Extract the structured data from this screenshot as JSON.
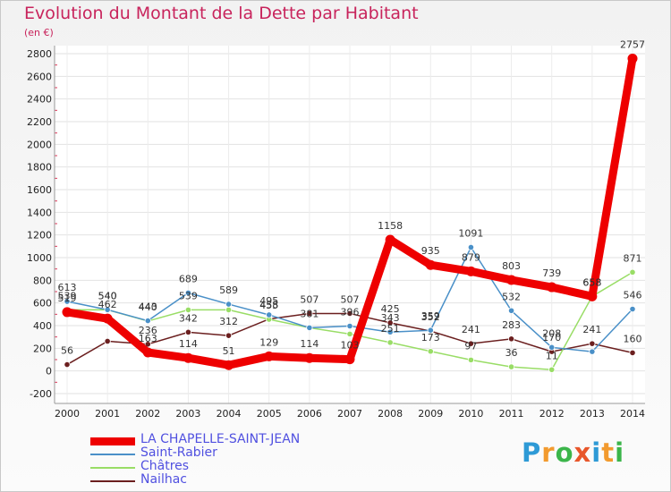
{
  "chart_data": {
    "type": "line",
    "title": "Evolution du Montant de la Dette par Habitant",
    "ylabel": "(en €)",
    "ylim": [
      -200,
      2800
    ],
    "yticks": [
      -200,
      0,
      200,
      400,
      600,
      800,
      1000,
      1200,
      1400,
      1600,
      1800,
      2000,
      2200,
      2400,
      2600,
      2800
    ],
    "x": [
      "2000",
      "2001",
      "2002",
      "2003",
      "2004",
      "2005",
      "2006",
      "2007",
      "2008",
      "2009",
      "2010",
      "2011",
      "2012",
      "2013",
      "2014"
    ],
    "grid": true,
    "legend_position": "bottom-left",
    "series": [
      {
        "name": "LA CHAPELLE-SAINT-JEAN",
        "color": "#ee0000",
        "values": [
          519,
          462,
          163,
          114,
          51,
          129,
          114,
          103,
          1158,
          935,
          879,
          803,
          739,
          658,
          2757
        ]
      },
      {
        "name": "Saint-Rabier",
        "color": "#4a90c8",
        "values": [
          613,
          540,
          443,
          689,
          589,
          495,
          381,
          396,
          343,
          359,
          1091,
          532,
          208,
          170,
          546
        ]
      },
      {
        "name": "Châtres",
        "color": "#99dd66",
        "values": [
          539,
          540,
          440,
          539,
          539,
          455,
          381,
          326,
          251,
          173,
          97,
          36,
          11,
          658,
          871
        ]
      },
      {
        "name": "Nailhac",
        "color": "#6b1f1f",
        "values": [
          56,
          262,
          236,
          342,
          312,
          458,
          507,
          507,
          425,
          352,
          241,
          283,
          170,
          241,
          160
        ]
      }
    ],
    "data_labels": [
      [
        "519",
        "462",
        "163",
        "114",
        "51",
        "129",
        "114",
        "103",
        "1158",
        "935",
        "879",
        "803",
        "739",
        "658",
        "2757"
      ],
      [
        "613",
        "540",
        "443",
        "689",
        "589",
        "495",
        "381",
        "396",
        "343",
        "359",
        "1091",
        "532",
        "208",
        "",
        "546"
      ],
      [
        "539",
        "540",
        "440",
        "539",
        "",
        "455",
        "",
        "",
        "251",
        "173",
        "97",
        "36",
        "11",
        "658",
        "871"
      ],
      [
        "56",
        "",
        "236",
        "342",
        "312",
        "458",
        "507",
        "507",
        "425",
        "352",
        "241",
        "283",
        "170",
        "241",
        "160"
      ]
    ]
  },
  "logo": {
    "letters": [
      "P",
      "r",
      "o",
      "x",
      "i",
      "t",
      "i"
    ],
    "colors": [
      "#2e9ad6",
      "#f29a2e",
      "#3bb54a",
      "#e8562a",
      "#2e9ad6",
      "#f29a2e",
      "#3bb54a"
    ]
  }
}
